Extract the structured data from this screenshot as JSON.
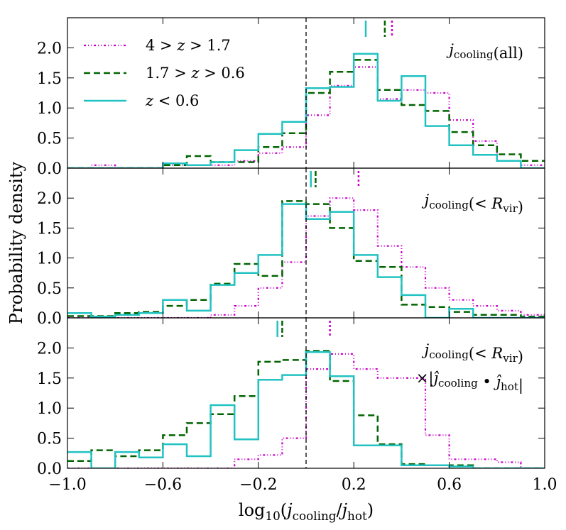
{
  "chart_data": {
    "type": "step",
    "xlabel": "log10(j_cooling/j_hot)",
    "ylabel": "Probability density",
    "xlim": [
      -1.0,
      1.0
    ],
    "ylim": [
      0,
      2.5
    ],
    "x_ticks": [
      {
        "value": -1.0,
        "label": "−1.0"
      },
      {
        "value": -0.6,
        "label": "−0.6"
      },
      {
        "value": -0.2,
        "label": "−0.2"
      },
      {
        "value": 0.2,
        "label": "0.2"
      },
      {
        "value": 0.6,
        "label": "0.6"
      },
      {
        "value": 1.0,
        "label": "1.0"
      }
    ],
    "y_ticks": [
      {
        "value": 0.0,
        "label": "0.0"
      },
      {
        "value": 0.5,
        "label": "0.5"
      },
      {
        "value": 1.0,
        "label": "1.0"
      },
      {
        "value": 1.5,
        "label": "1.5"
      },
      {
        "value": 2.0,
        "label": "2.0"
      }
    ],
    "reference_line_x": 0.0,
    "bin_edges": [
      -1.0,
      -0.9,
      -0.8,
      -0.7,
      -0.6,
      -0.5,
      -0.4,
      -0.3,
      -0.2,
      -0.1,
      0.0,
      0.1,
      0.2,
      0.3,
      0.4,
      0.5,
      0.6,
      0.7,
      0.8,
      0.9,
      1.0
    ],
    "series_styles": [
      {
        "name": "4 > z > 1.7",
        "color": "#cc00cc",
        "dash": "dashdot"
      },
      {
        "name": "1.7 > z > 0.6",
        "color": "#006400",
        "dash": "dashed"
      },
      {
        "name": "z < 0.6",
        "color": "#22c2c2",
        "dash": "solid"
      }
    ],
    "legend": {
      "placement": "upper-left",
      "entries": [
        {
          "prefix": "4 > ",
          "var": "z",
          "suffix": " > 1.7"
        },
        {
          "prefix": "1.7 > ",
          "var": "z",
          "suffix": " > 0.6"
        },
        {
          "prefix": "",
          "var": "z",
          "suffix": " < 0.6"
        }
      ]
    },
    "panels": [
      {
        "label_lines": [
          "j_cooling(all)"
        ],
        "medians": [
          0.36,
          0.33,
          0.25
        ],
        "series": [
          {
            "name": "4 > z > 1.7",
            "values": [
              0,
              0.05,
              0,
              0,
              0.05,
              0.05,
              0.05,
              0.12,
              0.25,
              0.35,
              0.88,
              1.37,
              1.68,
              1.15,
              1.3,
              1.25,
              0.8,
              0.45,
              0.12,
              0.05
            ]
          },
          {
            "name": "1.7 > z > 0.6",
            "values": [
              0,
              0,
              0,
              0,
              0.05,
              0.2,
              0.1,
              0.1,
              0.35,
              0.58,
              1.25,
              1.6,
              1.8,
              1.3,
              1.05,
              0.95,
              0.6,
              0.38,
              0.23,
              0.12
            ]
          },
          {
            "name": "z < 0.6",
            "values": [
              0,
              0,
              0,
              0,
              0.08,
              0.05,
              0.1,
              0.3,
              0.57,
              0.77,
              1.33,
              1.35,
              1.9,
              1.12,
              1.53,
              0.7,
              0.38,
              0.22,
              0.12,
              0
            ]
          }
        ]
      },
      {
        "label_lines": [
          "j_cooling(< R_vir)"
        ],
        "medians": [
          0.22,
          0.04,
          0.02
        ],
        "series": [
          {
            "name": "4 > z > 1.7",
            "values": [
              0,
              0,
              0,
              0,
              0,
              0,
              0.05,
              0.2,
              0.5,
              0.93,
              1.7,
              2.0,
              1.8,
              1.2,
              0.85,
              0.5,
              0.3,
              0.2,
              0.12,
              0.05
            ]
          },
          {
            "name": "1.7 > z > 0.6",
            "values": [
              0.03,
              0.03,
              0.08,
              0.1,
              0.2,
              0.3,
              0.57,
              0.9,
              0.7,
              1.95,
              1.9,
              1.5,
              0.95,
              0.85,
              0.22,
              0.18,
              0.1,
              0.05,
              0.05,
              0.02
            ]
          },
          {
            "name": "z < 0.6",
            "values": [
              0.08,
              0.02,
              0.05,
              0.08,
              0.3,
              0.12,
              0.55,
              0.75,
              1.05,
              1.9,
              1.65,
              1.77,
              1.05,
              0.68,
              0.38,
              0,
              0.15,
              0,
              0,
              0
            ]
          }
        ]
      },
      {
        "label_lines": [
          "j_cooling(< R_vir)",
          "×|ĵ_cooling • ĵ_hot|"
        ],
        "medians": [
          0.1,
          -0.1,
          -0.12
        ],
        "series": [
          {
            "name": "4 > z > 1.7",
            "values": [
              0,
              0,
              0,
              0,
              0,
              0,
              0,
              0.15,
              0.22,
              0.5,
              1.65,
              1.9,
              1.65,
              1.5,
              1.5,
              0.55,
              0.15,
              0.15,
              0.1,
              0
            ]
          },
          {
            "name": "1.7 > z > 0.6",
            "values": [
              0.12,
              0.3,
              0.2,
              0.3,
              0.55,
              0.75,
              0.9,
              1.2,
              1.77,
              1.8,
              1.95,
              1.45,
              0.88,
              0.4,
              0.07,
              0.05,
              0.05,
              0,
              0,
              0
            ]
          },
          {
            "name": "z < 0.6",
            "values": [
              0.27,
              0,
              0.27,
              0.18,
              0.4,
              0.2,
              1.05,
              0.48,
              1.47,
              1.55,
              1.93,
              1.53,
              0.38,
              0.38,
              0.05,
              0.05,
              0.03,
              0,
              0,
              0
            ]
          }
        ]
      }
    ]
  }
}
